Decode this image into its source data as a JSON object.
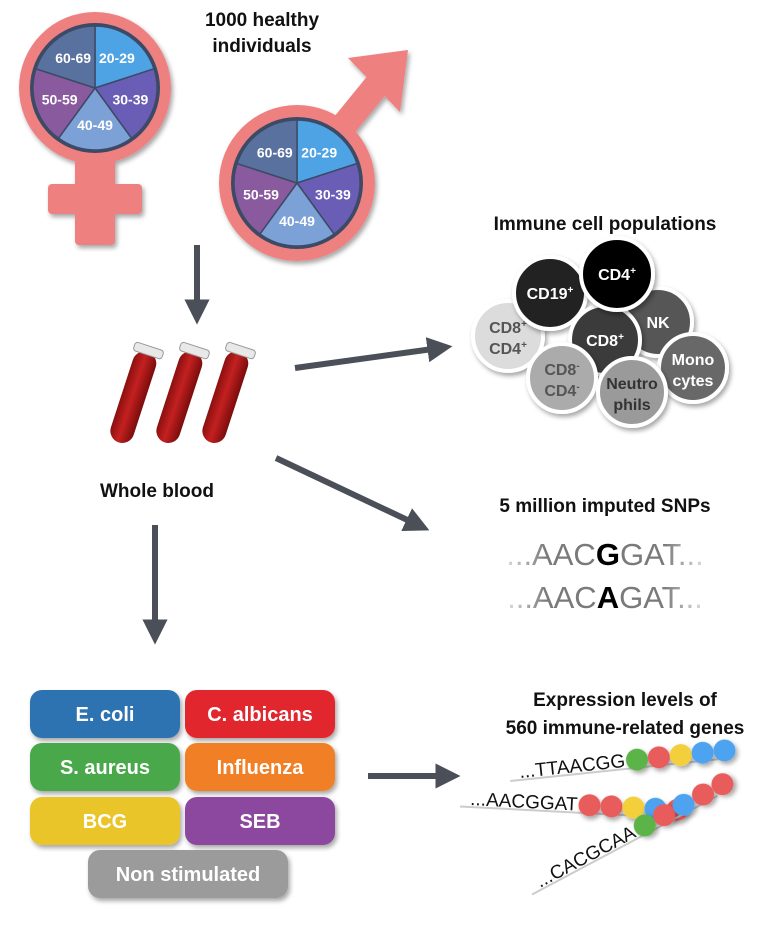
{
  "cohort": {
    "title_line1": "1000 healthy individuals",
    "title_line1a": "1000 healthy",
    "title_line2": "individuals",
    "age_groups": [
      "20-29",
      "30-39",
      "40-49",
      "50-59",
      "60-69"
    ],
    "age_colors": [
      "#4ea3e4",
      "#6a5db6",
      "#7ba1d6",
      "#8a5a9f",
      "#58719e"
    ],
    "symbol_color": "#ef8080"
  },
  "blood": {
    "label": "Whole blood"
  },
  "immune": {
    "title": "Immune cell populations",
    "cells": [
      {
        "line1": "CD19",
        "sup1": "+",
        "fill": "#232323",
        "text": "#ffffff"
      },
      {
        "line1": "CD4",
        "sup1": "+",
        "fill": "#050505",
        "text": "#ffffff"
      },
      {
        "line1": "NK",
        "fill": "#575757",
        "text": "#ffffff"
      },
      {
        "line1": "CD8",
        "sup1": "+",
        "fill": "#3b3b3b",
        "text": "#ffffff"
      },
      {
        "line1": "CD8",
        "sup1": "+",
        "line2": "CD4",
        "sup2": "+",
        "fill": "#dcdcdc",
        "text": "#555555"
      },
      {
        "line1": "CD8",
        "sup1": "-",
        "line2": "CD4",
        "sup2": "-",
        "fill": "#ababab",
        "text": "#555555"
      },
      {
        "line1": "Neutro",
        "line2": "phils",
        "fill": "#9a9a9a",
        "text": "#333333"
      },
      {
        "line1": "Mono",
        "line2": "cytes",
        "fill": "#686868",
        "text": "#ffffff"
      }
    ]
  },
  "snps": {
    "title": "5 million imputed SNPs",
    "seq1": {
      "prefix": "...AAC",
      "allele": "G",
      "suffix": "GAT..."
    },
    "seq2": {
      "prefix": "...AAC",
      "allele": "A",
      "suffix": "GAT..."
    }
  },
  "stimuli": [
    {
      "label": "E. coli",
      "color": "#2f73b1"
    },
    {
      "label": "C. albicans",
      "color": "#e1272d"
    },
    {
      "label": "S. aureus",
      "color": "#48a84a"
    },
    {
      "label": "Influenza",
      "color": "#f07f27"
    },
    {
      "label": "BCG",
      "color": "#e9c52b"
    },
    {
      "label": "SEB",
      "color": "#8c479f"
    },
    {
      "label": "Non stimulated",
      "color": "#9b9b9b"
    }
  ],
  "expression": {
    "title_line1": "Expression levels of",
    "title_line2": "560 immune-related genes",
    "strands": [
      {
        "seq": "...TTAACGG",
        "beads": [
          "#5bb347",
          "#e85c5c",
          "#f2cf3a",
          "#4ea3ef",
          "#4ea3ef"
        ]
      },
      {
        "seq": "...AACGGAT",
        "beads": [
          "#e85c5c",
          "#e85c5c",
          "#f2cf3a",
          "#4ea3ef",
          "#e85c5c"
        ]
      },
      {
        "seq": "...CACGCAA",
        "beads": [
          "#5bb347",
          "#e85c5c",
          "#4ea3ef",
          "#e85c5c",
          "#e85c5c"
        ]
      }
    ]
  }
}
